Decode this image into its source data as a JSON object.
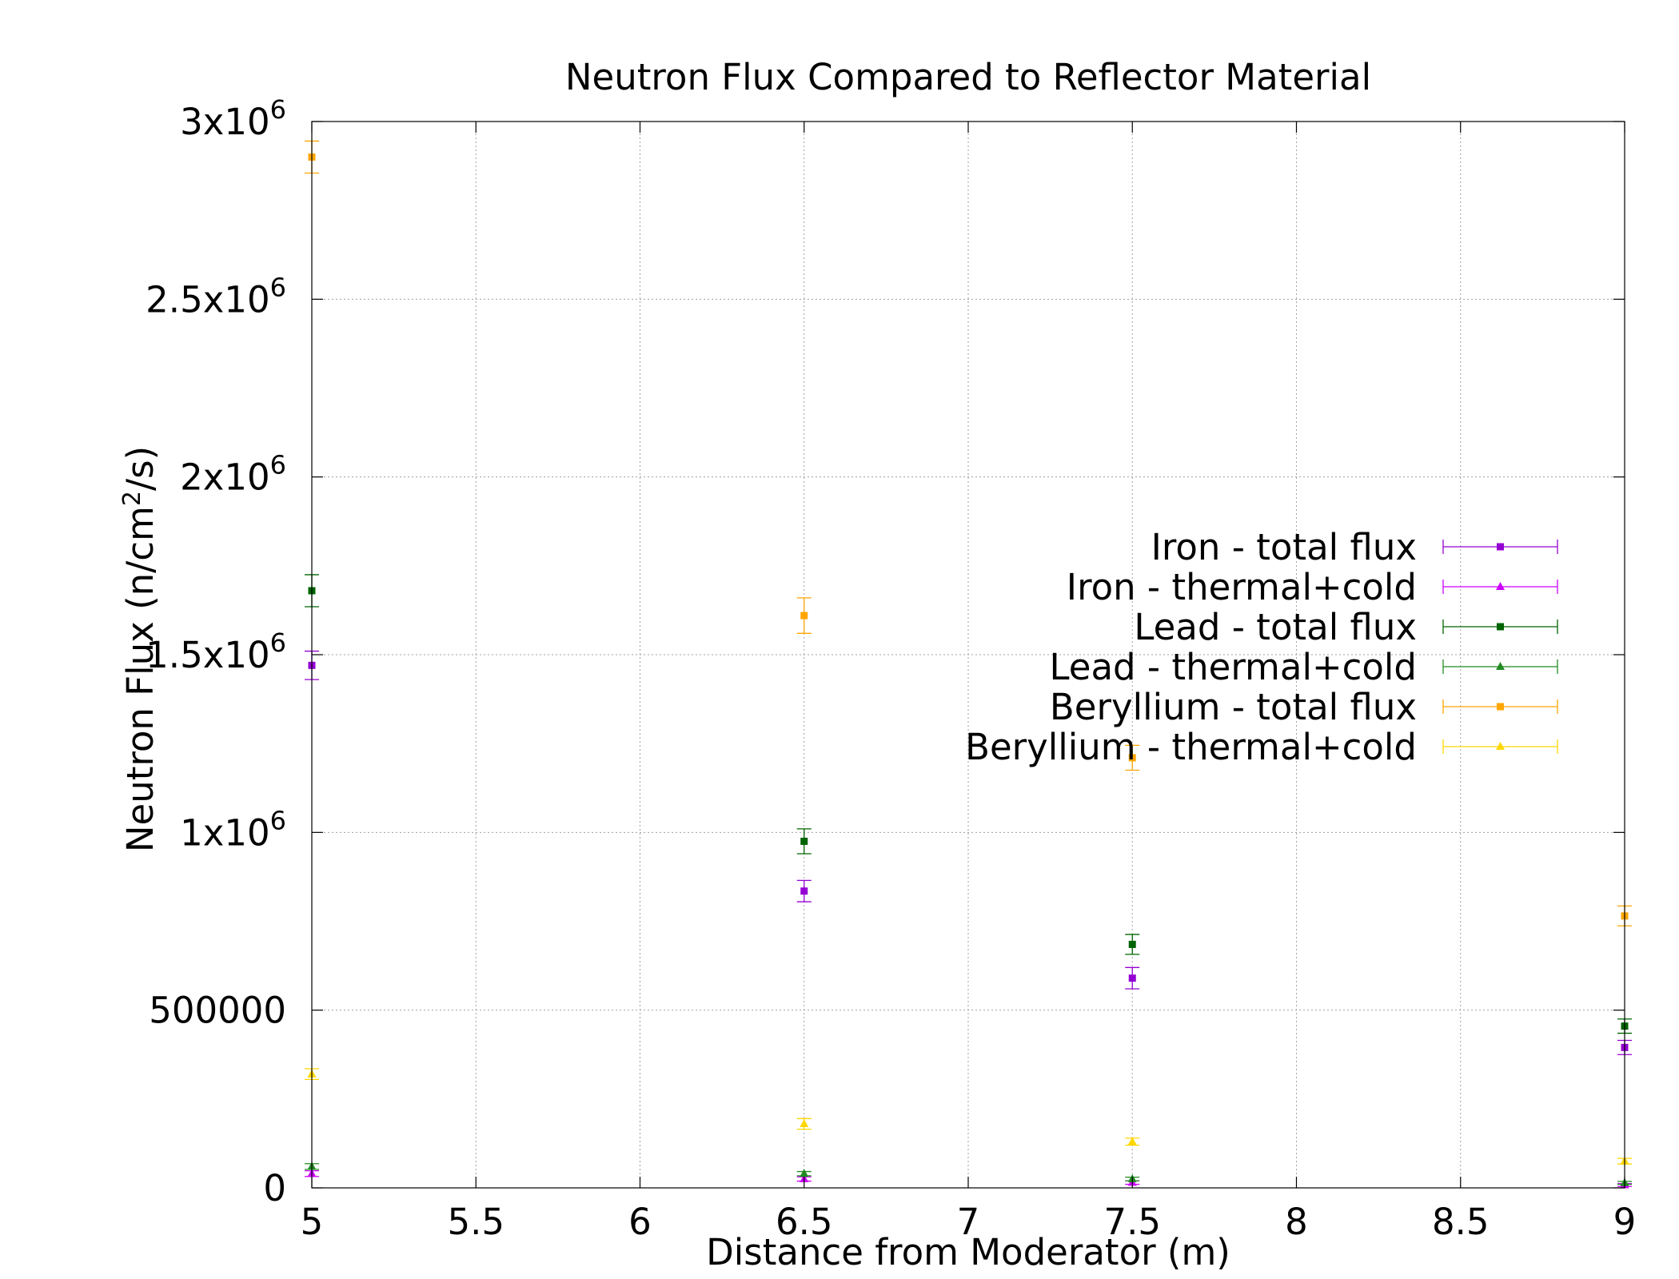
{
  "chart_data": {
    "type": "scatter",
    "title": "Neutron Flux Compared to Reflector Material",
    "xlabel": "Distance from Moderator (m)",
    "ylabel": {
      "prefix": "Neutron Flux (n/cm",
      "sup": "2",
      "suffix": "/s)"
    },
    "xlim": [
      5,
      9
    ],
    "ylim": [
      0,
      3000000
    ],
    "grid": true,
    "legend_position": "right-middle",
    "x_ticks": [
      {
        "value": 5,
        "label": "5"
      },
      {
        "value": 5.5,
        "label": "5.5"
      },
      {
        "value": 6,
        "label": "6"
      },
      {
        "value": 6.5,
        "label": "6.5"
      },
      {
        "value": 7,
        "label": "7"
      },
      {
        "value": 7.5,
        "label": "7.5"
      },
      {
        "value": 8,
        "label": "8"
      },
      {
        "value": 8.5,
        "label": "8.5"
      },
      {
        "value": 9,
        "label": "9"
      }
    ],
    "y_ticks": [
      {
        "value": 0,
        "base": "0",
        "exp": ""
      },
      {
        "value": 500000,
        "base": "500000",
        "exp": ""
      },
      {
        "value": 1000000,
        "base": "1x10",
        "exp": "6"
      },
      {
        "value": 1500000,
        "base": "1.5x10",
        "exp": "6"
      },
      {
        "value": 2000000,
        "base": "2x10",
        "exp": "6"
      },
      {
        "value": 2500000,
        "base": "2.5x10",
        "exp": "6"
      },
      {
        "value": 3000000,
        "base": "3x10",
        "exp": "6"
      }
    ],
    "series": [
      {
        "name": "Iron - total flux",
        "color": "#9400d3",
        "marker": "square",
        "points": [
          {
            "x": 5,
            "y": 1470000,
            "err": 40000
          },
          {
            "x": 6.5,
            "y": 835000,
            "err": 30000
          },
          {
            "x": 7.5,
            "y": 590000,
            "err": 30000
          },
          {
            "x": 9,
            "y": 395000,
            "err": 20000
          }
        ]
      },
      {
        "name": "Iron - thermal+cold",
        "color": "#cc00ff",
        "marker": "triangle",
        "points": [
          {
            "x": 5,
            "y": 40000,
            "err": 8000
          },
          {
            "x": 6.5,
            "y": 25000,
            "err": 6000
          },
          {
            "x": 7.5,
            "y": 15000,
            "err": 5000
          },
          {
            "x": 9,
            "y": 8000,
            "err": 4000
          }
        ]
      },
      {
        "name": "Lead - total flux",
        "color": "#006400",
        "marker": "square",
        "points": [
          {
            "x": 5,
            "y": 1680000,
            "err": 45000
          },
          {
            "x": 6.5,
            "y": 975000,
            "err": 35000
          },
          {
            "x": 7.5,
            "y": 685000,
            "err": 28000
          },
          {
            "x": 9,
            "y": 455000,
            "err": 20000
          }
        ]
      },
      {
        "name": "Lead - thermal+cold",
        "color": "#228b22",
        "marker": "triangle",
        "points": [
          {
            "x": 5,
            "y": 60000,
            "err": 8000
          },
          {
            "x": 6.5,
            "y": 40000,
            "err": 6000
          },
          {
            "x": 7.5,
            "y": 25000,
            "err": 5000
          },
          {
            "x": 9,
            "y": 14000,
            "err": 4000
          }
        ]
      },
      {
        "name": "Beryllium - total flux",
        "color": "#ffa500",
        "marker": "square",
        "points": [
          {
            "x": 5,
            "y": 2900000,
            "err": 45000
          },
          {
            "x": 6.5,
            "y": 1610000,
            "err": 50000
          },
          {
            "x": 7.5,
            "y": 1210000,
            "err": 35000
          },
          {
            "x": 9,
            "y": 765000,
            "err": 28000
          }
        ]
      },
      {
        "name": "Beryllium - thermal+cold",
        "color": "#ffd700",
        "marker": "triangle",
        "points": [
          {
            "x": 5,
            "y": 320000,
            "err": 15000
          },
          {
            "x": 6.5,
            "y": 180000,
            "err": 15000
          },
          {
            "x": 7.5,
            "y": 130000,
            "err": 10000
          },
          {
            "x": 9,
            "y": 75000,
            "err": 8000
          }
        ]
      }
    ]
  }
}
